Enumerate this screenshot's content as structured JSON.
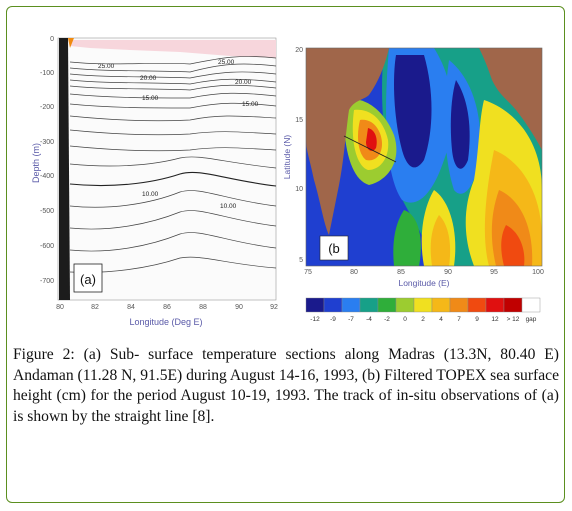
{
  "panel_a": {
    "label": "(a)",
    "xlabel": "Longitude (Deg E)",
    "ylabel": "Depth (m)",
    "x_ticks": [
      "80",
      "82",
      "84",
      "86",
      "88",
      "90",
      "92"
    ],
    "y_ticks": [
      "0",
      "-100",
      "-200",
      "-300",
      "-400",
      "-500",
      "-600",
      "-700"
    ],
    "contour_labels": [
      "25.00",
      "20.00",
      "15.00",
      "10.00",
      "25.00",
      "20.00",
      "15.00",
      "10.00"
    ]
  },
  "panel_b": {
    "label": "(b",
    "xlabel": "Longitude (E)",
    "ylabel": "Latitude (N)",
    "x_ticks": [
      "75",
      "80",
      "85",
      "90",
      "95",
      "100"
    ],
    "y_ticks": [
      "20",
      "15",
      "10",
      "5"
    ],
    "colorbar": {
      "labels": [
        "-12",
        "-9",
        "-7",
        "-4",
        "-2",
        "0",
        "2",
        "4",
        "7",
        "9",
        "12",
        "> 12",
        "gap"
      ],
      "colors": [
        "#1a1a8c",
        "#1f3fd0",
        "#2a7ef0",
        "#17a088",
        "#2fae3a",
        "#9ccc30",
        "#f0e020",
        "#f5b818",
        "#f08a18",
        "#f04a10",
        "#e01010",
        "#c00000",
        "#ffffff"
      ]
    },
    "land_color": "#a0664a"
  },
  "caption": "Figure 2: (a) Sub- surface temperature sections along Madras (13.3N, 80.40 E) Andaman (11.28 N, 91.5E) during August 14-16, 1993, (b) Filtered TOPEX sea surface height (cm) for the period August 10-19, 1993. The track of in-situ observations of (a) is shown by the straight line [8]."
}
